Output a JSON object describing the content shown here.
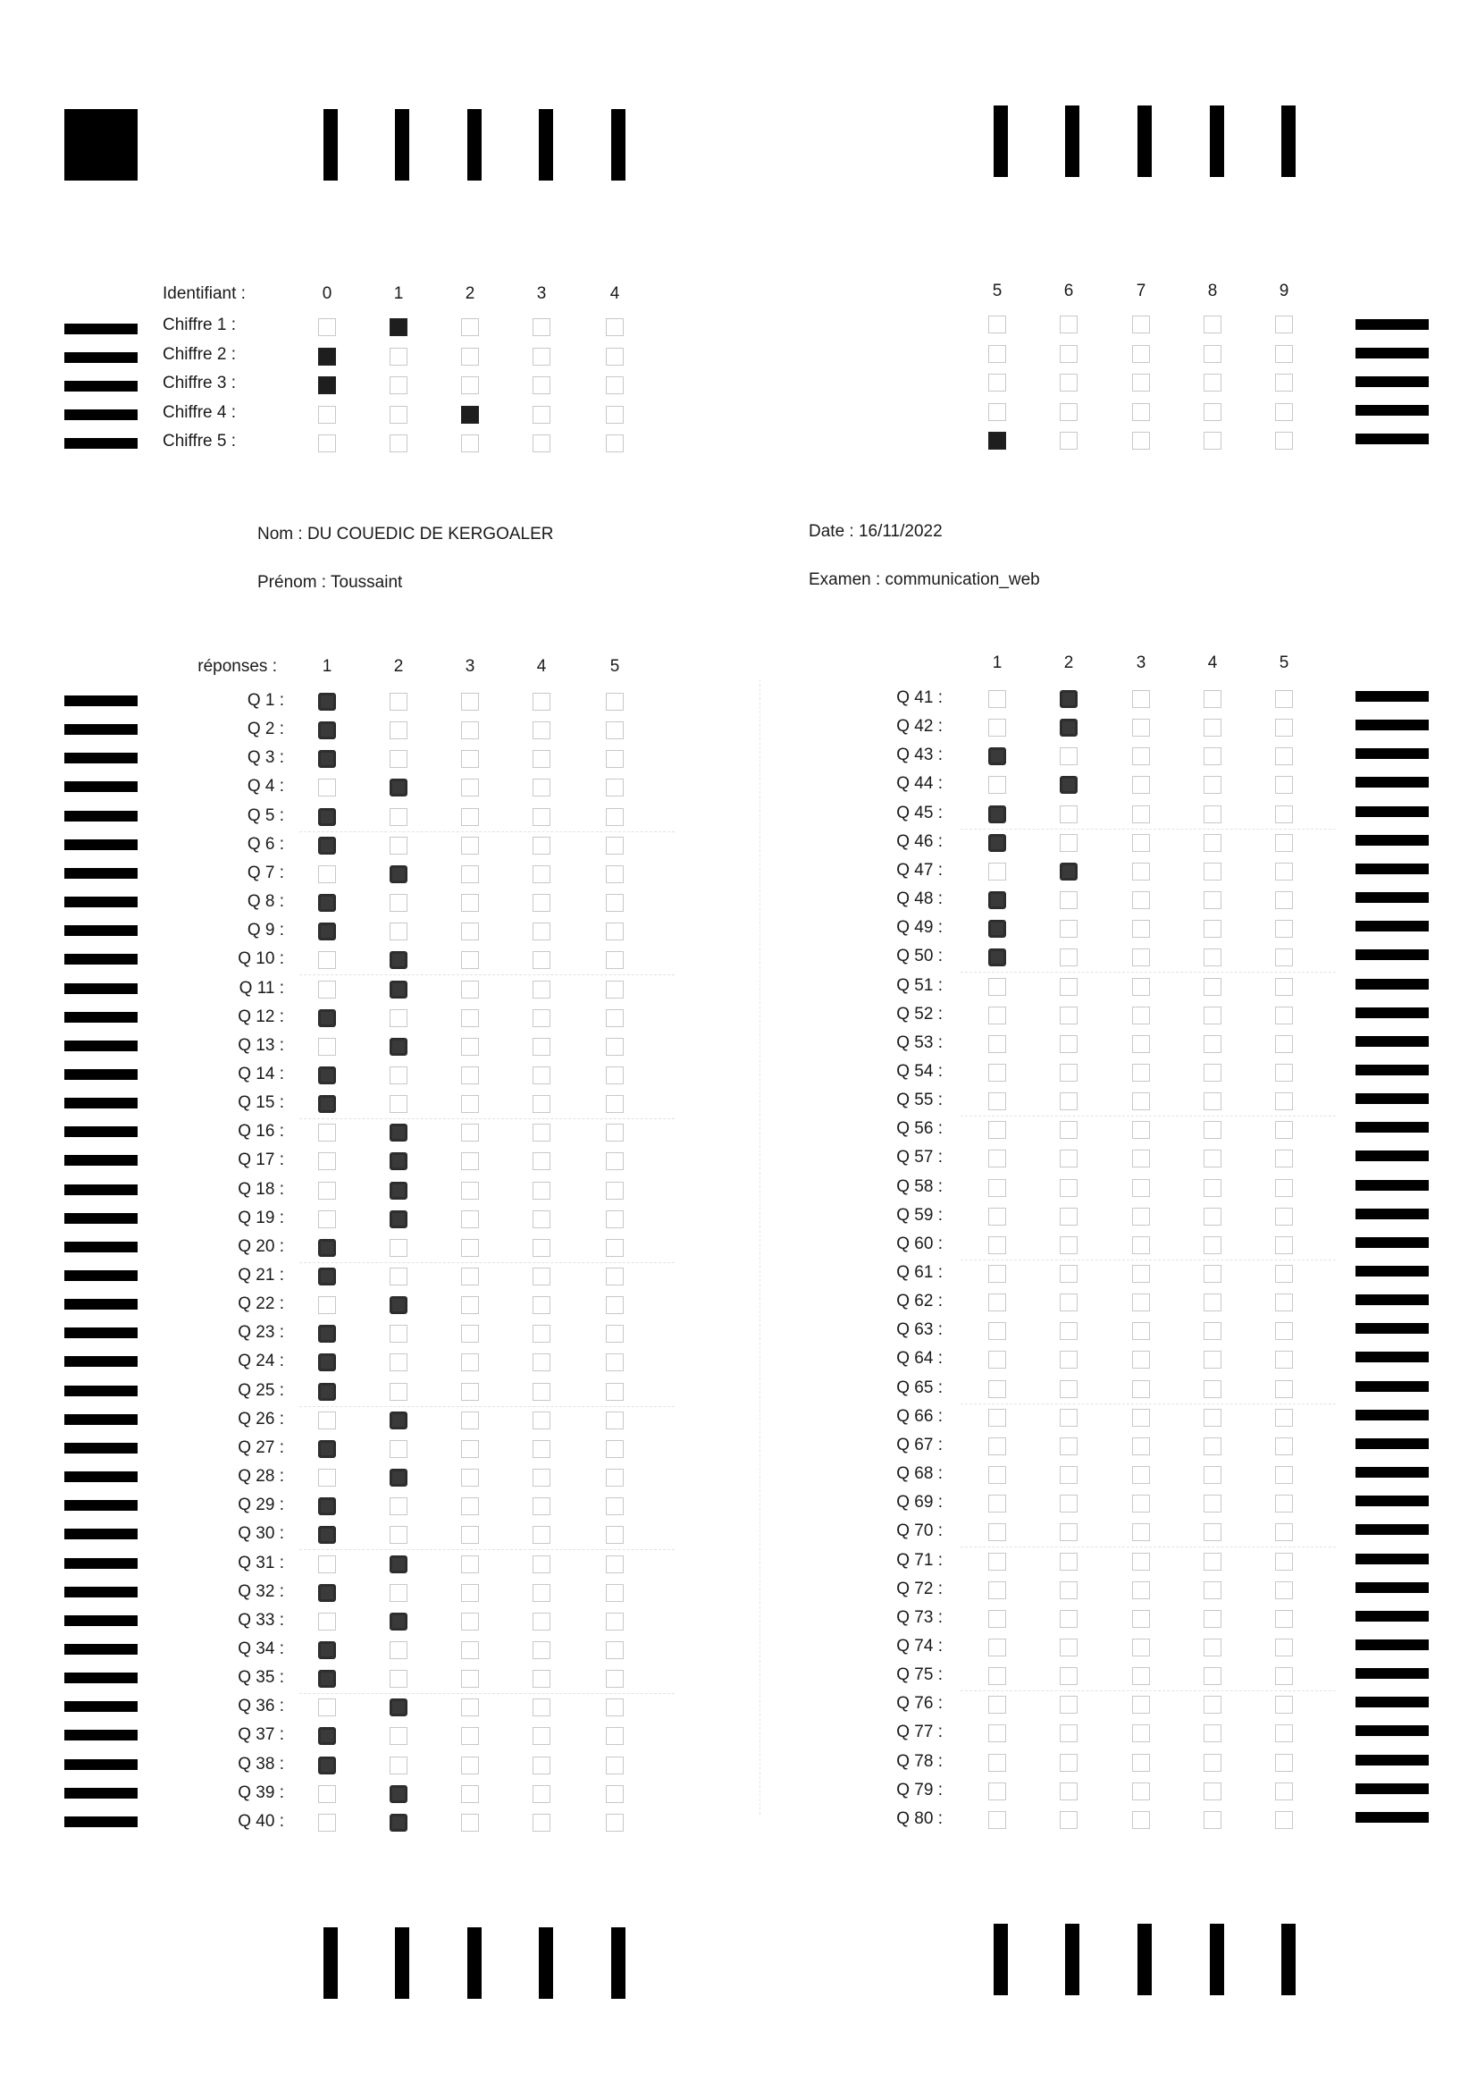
{
  "identification": {
    "label": "Identifiant :",
    "digit_headers": [
      "0",
      "1",
      "2",
      "3",
      "4",
      "5",
      "6",
      "7",
      "8",
      "9"
    ],
    "rows": [
      {
        "label": "Chiffre 1 :",
        "filled": 1
      },
      {
        "label": "Chiffre 2 :",
        "filled": 0
      },
      {
        "label": "Chiffre 3 :",
        "filled": 0
      },
      {
        "label": "Chiffre 4 :",
        "filled": 2
      },
      {
        "label": "Chiffre 5 :",
        "filled": 5
      }
    ]
  },
  "student": {
    "nom": "Nom : DU COUEDIC DE KERGOALER",
    "prenom": "Prénom : Toussaint",
    "date": "Date : 16/11/2022",
    "examen": "Examen : communication_web"
  },
  "answers": {
    "label": "réponses :",
    "choice_headers": [
      "1",
      "2",
      "3",
      "4",
      "5"
    ],
    "questions": [
      {
        "label": "Q 1 :",
        "mark": 1
      },
      {
        "label": "Q 2 :",
        "mark": 1
      },
      {
        "label": "Q 3 :",
        "mark": 1
      },
      {
        "label": "Q 4 :",
        "mark": 2
      },
      {
        "label": "Q 5 :",
        "mark": 1
      },
      {
        "label": "Q 6 :",
        "mark": 1
      },
      {
        "label": "Q 7 :",
        "mark": 2
      },
      {
        "label": "Q 8 :",
        "mark": 1
      },
      {
        "label": "Q 9 :",
        "mark": 1
      },
      {
        "label": "Q 10 :",
        "mark": 2
      },
      {
        "label": "Q 11 :",
        "mark": 2
      },
      {
        "label": "Q 12 :",
        "mark": 1
      },
      {
        "label": "Q 13 :",
        "mark": 2
      },
      {
        "label": "Q 14 :",
        "mark": 1
      },
      {
        "label": "Q 15 :",
        "mark": 1
      },
      {
        "label": "Q 16 :",
        "mark": 2
      },
      {
        "label": "Q 17 :",
        "mark": 2
      },
      {
        "label": "Q 18 :",
        "mark": 2
      },
      {
        "label": "Q 19 :",
        "mark": 2
      },
      {
        "label": "Q 20 :",
        "mark": 1
      },
      {
        "label": "Q 21 :",
        "mark": 1
      },
      {
        "label": "Q 22 :",
        "mark": 2
      },
      {
        "label": "Q 23 :",
        "mark": 1
      },
      {
        "label": "Q 24 :",
        "mark": 1
      },
      {
        "label": "Q 25 :",
        "mark": 1
      },
      {
        "label": "Q 26 :",
        "mark": 2
      },
      {
        "label": "Q 27 :",
        "mark": 1
      },
      {
        "label": "Q 28 :",
        "mark": 2
      },
      {
        "label": "Q 29 :",
        "mark": 1
      },
      {
        "label": "Q 30 :",
        "mark": 1
      },
      {
        "label": "Q 31 :",
        "mark": 2
      },
      {
        "label": "Q 32 :",
        "mark": 1
      },
      {
        "label": "Q 33 :",
        "mark": 2
      },
      {
        "label": "Q 34 :",
        "mark": 1
      },
      {
        "label": "Q 35 :",
        "mark": 1
      },
      {
        "label": "Q 36 :",
        "mark": 2
      },
      {
        "label": "Q 37 :",
        "mark": 1
      },
      {
        "label": "Q 38 :",
        "mark": 1
      },
      {
        "label": "Q 39 :",
        "mark": 2
      },
      {
        "label": "Q 40 :",
        "mark": 2
      },
      {
        "label": "Q 41 :",
        "mark": 2
      },
      {
        "label": "Q 42 :",
        "mark": 2
      },
      {
        "label": "Q 43 :",
        "mark": 1
      },
      {
        "label": "Q 44 :",
        "mark": 2
      },
      {
        "label": "Q 45 :",
        "mark": 1
      },
      {
        "label": "Q 46 :",
        "mark": 1
      },
      {
        "label": "Q 47 :",
        "mark": 2
      },
      {
        "label": "Q 48 :",
        "mark": 1
      },
      {
        "label": "Q 49 :",
        "mark": 1
      },
      {
        "label": "Q 50 :",
        "mark": 1
      },
      {
        "label": "Q 51 :",
        "mark": 0
      },
      {
        "label": "Q 52 :",
        "mark": 0
      },
      {
        "label": "Q 53 :",
        "mark": 0
      },
      {
        "label": "Q 54 :",
        "mark": 0
      },
      {
        "label": "Q 55 :",
        "mark": 0
      },
      {
        "label": "Q 56 :",
        "mark": 0
      },
      {
        "label": "Q 57 :",
        "mark": 0
      },
      {
        "label": "Q 58 :",
        "mark": 0
      },
      {
        "label": "Q 59 :",
        "mark": 0
      },
      {
        "label": "Q 60 :",
        "mark": 0
      },
      {
        "label": "Q 61 :",
        "mark": 0
      },
      {
        "label": "Q 62 :",
        "mark": 0
      },
      {
        "label": "Q 63 :",
        "mark": 0
      },
      {
        "label": "Q 64 :",
        "mark": 0
      },
      {
        "label": "Q 65 :",
        "mark": 0
      },
      {
        "label": "Q 66 :",
        "mark": 0
      },
      {
        "label": "Q 67 :",
        "mark": 0
      },
      {
        "label": "Q 68 :",
        "mark": 0
      },
      {
        "label": "Q 69 :",
        "mark": 0
      },
      {
        "label": "Q 70 :",
        "mark": 0
      },
      {
        "label": "Q 71 :",
        "mark": 0
      },
      {
        "label": "Q 72 :",
        "mark": 0
      },
      {
        "label": "Q 73 :",
        "mark": 0
      },
      {
        "label": "Q 74 :",
        "mark": 0
      },
      {
        "label": "Q 75 :",
        "mark": 0
      },
      {
        "label": "Q 76 :",
        "mark": 0
      },
      {
        "label": "Q 77 :",
        "mark": 0
      },
      {
        "label": "Q 78 :",
        "mark": 0
      },
      {
        "label": "Q 79 :",
        "mark": 0
      },
      {
        "label": "Q 80 :",
        "mark": 0
      }
    ]
  }
}
